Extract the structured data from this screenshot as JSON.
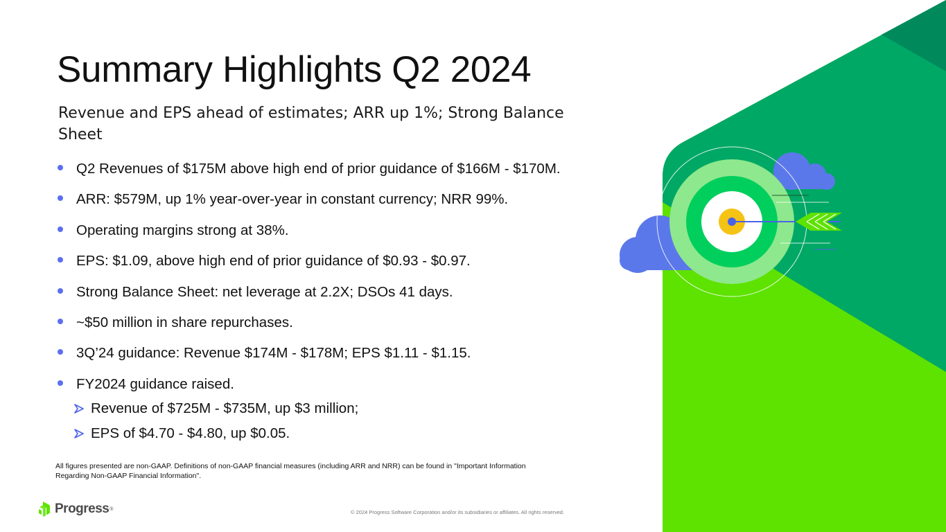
{
  "title": "Summary Highlights Q2 2024",
  "subtitle": "Revenue and EPS ahead of estimates; ARR up 1%; Strong Balance Sheet",
  "bullets": [
    "Q2 Revenues of $175M above high end of prior guidance of $166M - $170M.",
    "ARR: $579M, up 1% year-over-year in constant currency; NRR 99%.",
    "Operating margins strong at 38%.",
    "EPS: $1.09, above high end of prior guidance of $0.93 - $0.97.",
    "Strong Balance Sheet: net leverage at 2.2X; DSOs 41 days.",
    "~$50 million in share repurchases.",
    "3Q’24 guidance: Revenue $174M - $178M; EPS $1.11 - $1.15.",
    "FY2024 guidance raised."
  ],
  "sub_bullets": [
    "Revenue of $725M - $735M, up $3 million;",
    "EPS of $4.70 - $4.80, up $0.05."
  ],
  "footnote": "All figures presented are non-GAAP. Definitions of non-GAAP financial measures (including ARR and NRR) can be found in \"Important Information Regarding Non-GAAP Financial Information\".",
  "copyright": "© 2024 Progress Software Corporation and/or its subsidiaries or affiliates. All rights reserved.",
  "logo": {
    "text": "Progress",
    "mark": "progress-logo-mark",
    "registered": "®"
  },
  "decoration": {
    "icons": [
      "target-icon",
      "arrow-icon",
      "cloud-icon"
    ],
    "colors": {
      "lime": "#5ee200",
      "green": "#00a865",
      "dark_green": "#008a5c",
      "ring_light": "#8ee88d",
      "ring_mid": "#00cf5d",
      "bullseye_yellow": "#f5c314",
      "cloud_blue": "#5b78ea",
      "bullet_blue": "#5b6ff0"
    }
  }
}
